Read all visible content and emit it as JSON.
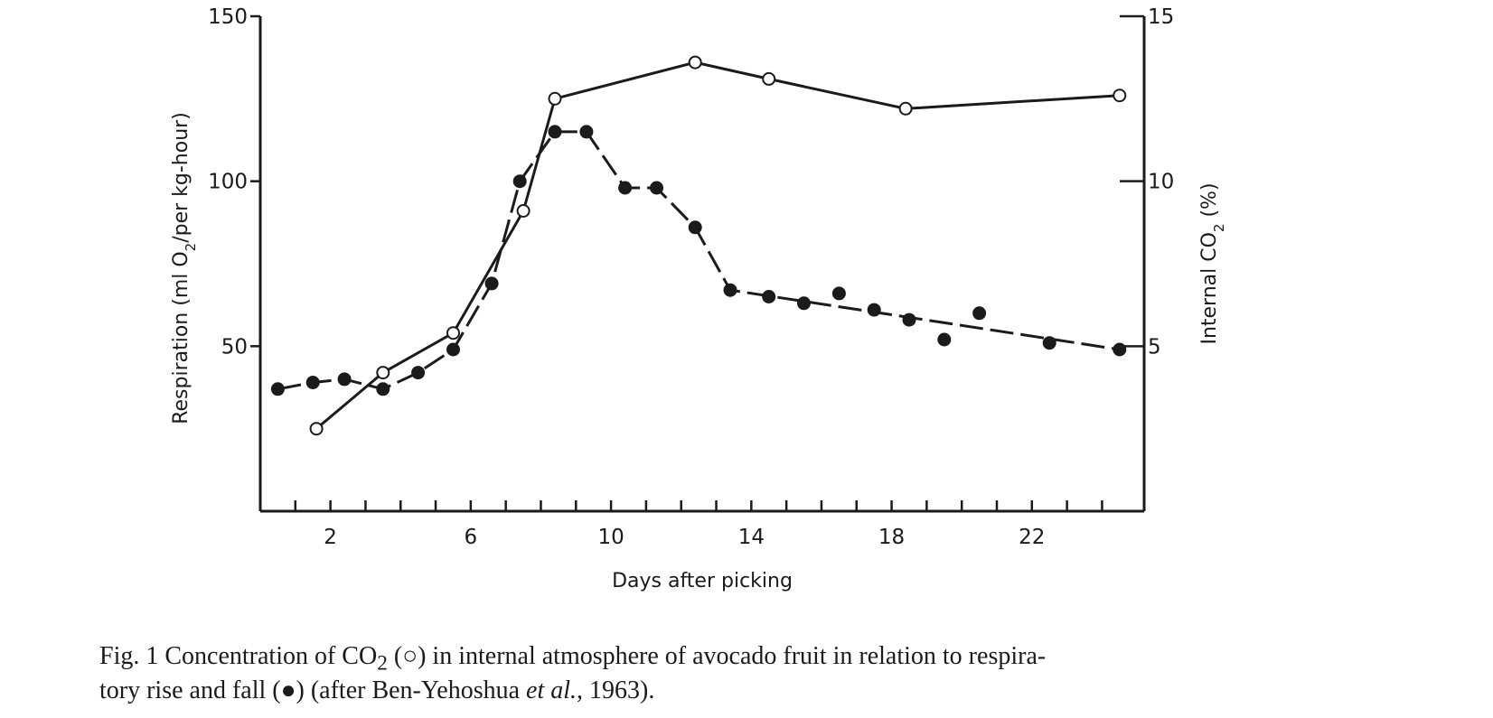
{
  "chart_data": {
    "type": "line",
    "xlabel": "Days after picking",
    "ylabel_left": "Respiration (ml O2/per kg-hour)",
    "ylabel_right": "Internal CO2 (%)",
    "xlim": [
      0,
      25.2
    ],
    "ylim_left": [
      0,
      150
    ],
    "ylim_right": [
      0,
      15
    ],
    "x_ticks": [
      1,
      2,
      3,
      4,
      5,
      6,
      7,
      8,
      9,
      10,
      11,
      12,
      13,
      14,
      15,
      16,
      17,
      18,
      19,
      20,
      21,
      22,
      23,
      24
    ],
    "x_tick_labels": [
      "2",
      "6",
      "10",
      "14",
      "18",
      "22"
    ],
    "x_tick_label_values": [
      2,
      6,
      10,
      14,
      18,
      22
    ],
    "y_left_ticks": [
      50,
      100,
      150
    ],
    "y_left_tick_labels": [
      "50",
      "100",
      "150"
    ],
    "y_right_ticks": [
      5,
      10,
      15
    ],
    "y_right_tick_labels": [
      "5",
      "10",
      "15"
    ],
    "grid": false,
    "series": [
      {
        "name": "Internal CO2",
        "axis": "right",
        "marker": "open-circle",
        "x": [
          1.6,
          3.5,
          5.5,
          7.5,
          8.4,
          12.4,
          14.5,
          18.4,
          24.5
        ],
        "y": [
          2.5,
          4.2,
          5.4,
          9.1,
          12.5,
          13.6,
          13.1,
          12.2,
          12.6
        ]
      },
      {
        "name": "Respiration",
        "axis": "left",
        "marker": "filled-circle",
        "x": [
          0.5,
          1.5,
          2.4,
          3.5,
          4.5,
          5.5,
          6.6,
          7.4,
          8.4,
          9.3,
          10.4,
          11.3,
          12.4,
          13.4,
          14.5,
          15.5,
          16.5,
          17.5,
          18.5,
          19.5,
          20.5,
          22.5,
          24.5
        ],
        "y": [
          37,
          39,
          40,
          37,
          42,
          49,
          69,
          100,
          115,
          115,
          98,
          98,
          86,
          67,
          65,
          63,
          66,
          61,
          58,
          52,
          60,
          51,
          49
        ],
        "line_style": "dashed",
        "line_path_x": [
          0.5,
          1.5,
          2.4,
          3.5,
          4.5,
          5.5,
          6.6,
          7.4,
          8.4,
          9.3,
          10.4,
          11.3,
          12.4,
          13.4,
          24.5
        ],
        "line_path_y": [
          37,
          39,
          40,
          37,
          42,
          49,
          69,
          100,
          115,
          115,
          98,
          98,
          86,
          67,
          49
        ]
      }
    ]
  },
  "caption": {
    "prefix": "Fig. 1 Concentration of CO",
    "subscript": "2",
    "part2": " (○) in internal atmosphere of avocado fruit in relation to respira-",
    "line2_start": "tory rise and fall (",
    "filled_symbol": "●",
    "line2_mid": ") (after Ben-Yehoshua ",
    "italic": "et al.",
    "line2_end": ", 1963)."
  }
}
